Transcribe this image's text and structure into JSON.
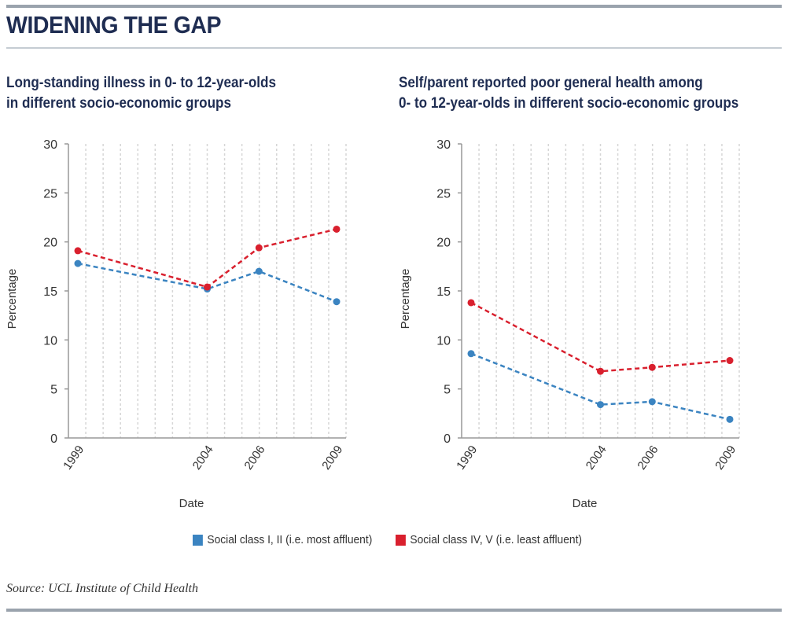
{
  "headline": "WIDENING THE GAP",
  "source": "Source: UCL Institute of Child Health",
  "legend": [
    {
      "label": "Social class I, II (i.e. most affluent)",
      "color": "#3b84c1"
    },
    {
      "label": "Social class IV, V (i.e. least affluent)",
      "color": "#d9202e"
    }
  ],
  "charts": [
    {
      "subtitle_line1": "Long-standing illness in 0- to 12-year-olds",
      "subtitle_line2": "in different socio-economic groups"
    },
    {
      "subtitle_line1": "Self/parent reported poor general health among",
      "subtitle_line2": "0- to 12-year-olds in different socio-economic groups"
    }
  ],
  "chart_data": [
    {
      "type": "line",
      "title": "Long-standing illness in 0- to 12-year-olds in different socio-economic groups",
      "xlabel": "Date",
      "ylabel": "Percentage",
      "x": [
        1999,
        2004,
        2006,
        2009
      ],
      "ylim": [
        0,
        30
      ],
      "yticks": [
        0,
        5,
        10,
        15,
        20,
        25,
        30
      ],
      "grid": true,
      "series": [
        {
          "name": "Social class I, II (i.e. most affluent)",
          "color": "#3b84c1",
          "values": [
            17.8,
            15.2,
            17.0,
            13.9
          ]
        },
        {
          "name": "Social class IV, V (i.e. least affluent)",
          "color": "#d9202e",
          "values": [
            19.1,
            15.4,
            19.4,
            21.3
          ]
        }
      ]
    },
    {
      "type": "line",
      "title": "Self/parent reported poor general health among 0- to 12-year-olds in different socio-economic groups",
      "xlabel": "Date",
      "ylabel": "Percentage",
      "x": [
        1999,
        2004,
        2006,
        2009
      ],
      "ylim": [
        0,
        30
      ],
      "yticks": [
        0,
        5,
        10,
        15,
        20,
        25,
        30
      ],
      "grid": true,
      "series": [
        {
          "name": "Social class I, II (i.e. most affluent)",
          "color": "#3b84c1",
          "values": [
            8.6,
            3.4,
            3.7,
            1.9
          ]
        },
        {
          "name": "Social class IV, V (i.e. least affluent)",
          "color": "#d9202e",
          "values": [
            13.8,
            6.8,
            7.2,
            7.9
          ]
        }
      ]
    }
  ]
}
